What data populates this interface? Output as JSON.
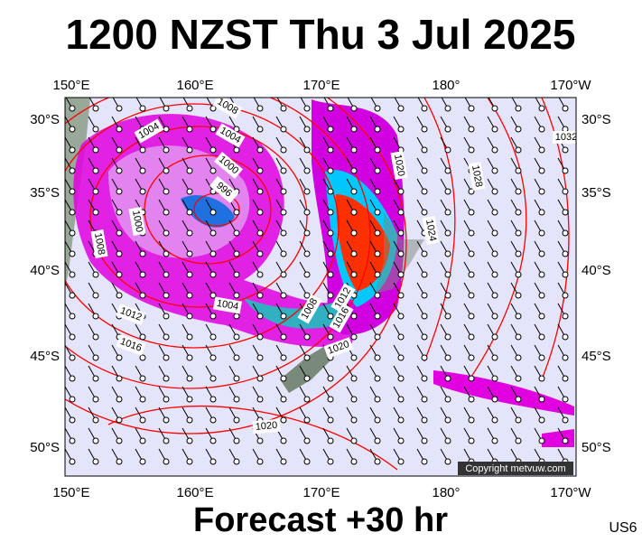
{
  "header": {
    "title": "1200 NZST Thu 3 Jul 2025"
  },
  "footer": {
    "forecast": "Forecast +30 hr",
    "region_code": "US6"
  },
  "map": {
    "longitude_labels": [
      "150°E",
      "160°E",
      "170°E",
      "180°",
      "170°W"
    ],
    "latitude_labels": [
      "30°S",
      "35°S",
      "40°S",
      "45°S",
      "50°S"
    ],
    "copyright": "Copyright metvuw.com",
    "isobar_labels": [
      "1008",
      "1004",
      "1004",
      "1000",
      "996",
      "1000",
      "1008",
      "1012",
      "1016",
      "1004",
      "1008",
      "1012",
      "1016",
      "1020",
      "1020",
      "1020",
      "1024",
      "1028",
      "1032"
    ]
  }
}
